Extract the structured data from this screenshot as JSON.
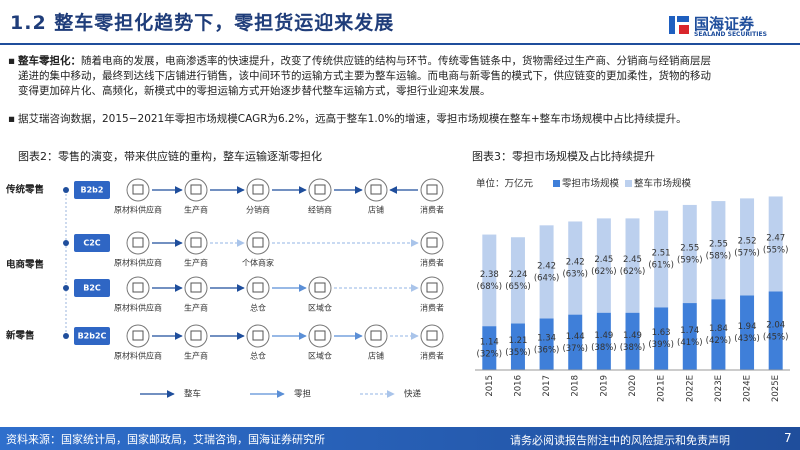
{
  "header": {
    "title": "1.2 整车零担化趋势下，零担货运迎来发展",
    "logo": "国海证券",
    "logo_en": "SEALAND SECURITIES"
  },
  "bullets": [
    {
      "lead": "整车零担化：",
      "text": "随着电商的发展，电商渗透率的快速提升，改变了传统供应链的结构与环节。传统零售链条中，货物需经过生产商、分销商与经销商层层递进的集中移动，最终到达线下店铺进行销售，该中间环节的运输方式主要为整车运输。而电商与新零售的模式下，供应链变的更加柔性，货物的移动变得更加碎片化、高频化，新模式中的零担运输方式开始逐步替代整车运输方式，零担行业迎来发展。"
    },
    {
      "text": "据艾瑞咨询数据，2015−2021年零担市场规模CAGR为6.2%，远高于整车1.0%的增速，零担市场规模在整车+整车市场规模中占比持续提升。"
    }
  ],
  "diagram": {
    "title": "图表2：零售的演变，带来供应链的重构，整车运输逐渐零担化",
    "groups": [
      "传统零售",
      "电商零售",
      "新零售"
    ],
    "rows": [
      {
        "badge": "B2b2",
        "nodes": [
          "原材料供应商",
          "生产商",
          "分销商",
          "经销商",
          "店铺",
          "消费者"
        ]
      },
      {
        "badge": "C2C",
        "nodes": [
          "原材料供应商",
          "生产商",
          "个体商家",
          "消费者"
        ]
      },
      {
        "badge": "B2C",
        "nodes": [
          "原材料供应商",
          "生产商",
          "总仓",
          "区域仓",
          "消费者"
        ]
      },
      {
        "badge": "B2b2C",
        "nodes": [
          "原材料供应商",
          "生产商",
          "总仓",
          "区域仓",
          "店铺",
          "消费者"
        ]
      }
    ],
    "legend": [
      "整车",
      "零担",
      "快递"
    ]
  },
  "chart_data": {
    "type": "bar",
    "stacked": true,
    "title": "图表3：零担市场规模及占比持续提升",
    "unit": "单位：万亿元",
    "categories": [
      "2015",
      "2016",
      "2017",
      "2018",
      "2019",
      "2020",
      "2021E",
      "2022E",
      "2023E",
      "2024E",
      "2025E"
    ],
    "ylim": [
      0,
      4.6
    ],
    "series": [
      {
        "name": "零担市场规模",
        "color": "#3f7fd9",
        "values": [
          1.14,
          1.21,
          1.34,
          1.44,
          1.49,
          1.49,
          1.63,
          1.74,
          1.84,
          1.94,
          2.04
        ],
        "share_labels": [
          "(32%)",
          "(35%)",
          "(36%)",
          "(37%)",
          "(38%)",
          "(38%)",
          "(39%)",
          "(41%)",
          "(42%)",
          "(43%)",
          "(45%)"
        ]
      },
      {
        "name": "整车市场规模",
        "color": "#bcd0ee",
        "values": [
          2.38,
          2.24,
          2.42,
          2.42,
          2.45,
          2.45,
          2.51,
          2.55,
          2.55,
          2.52,
          2.47
        ],
        "share_labels": [
          "(68%)",
          "(65%)",
          "(64%)",
          "(63%)",
          "(62%)",
          "(62%)",
          "(61%)",
          "(59%)",
          "(58%)",
          "(57%)",
          "(55%)"
        ]
      }
    ]
  },
  "footer": {
    "source": "资料来源：国家统计局，国家邮政局，艾瑞咨询，国海证券研究所",
    "disclaimer": "请务必阅读报告附注中的风险提示和免责声明",
    "page": "7"
  }
}
